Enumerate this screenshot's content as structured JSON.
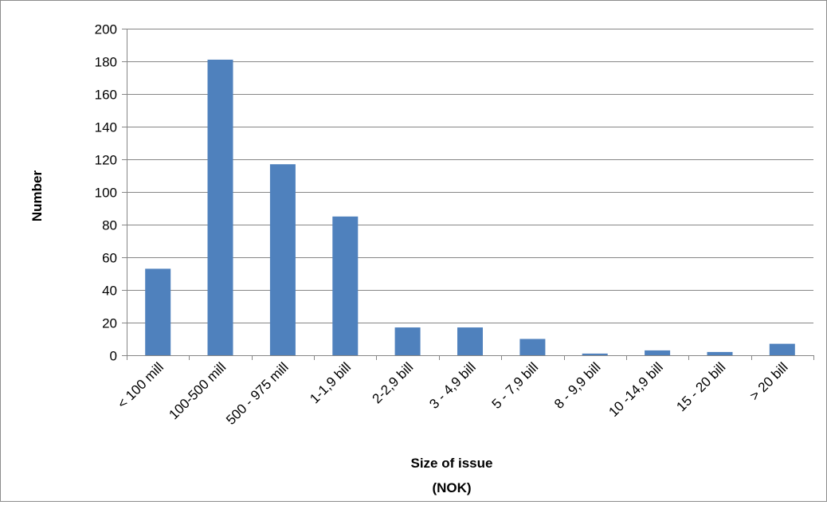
{
  "chart_data": {
    "type": "bar",
    "title": "",
    "xlabel": [
      "Size of issue",
      "(NOK)"
    ],
    "ylabel": "Number",
    "categories": [
      "< 100 mill",
      "100-500 mill",
      "500 - 975 mill",
      "1-1,9 bill",
      "2-2,9 bill",
      "3 - 4,9 bill",
      "5 - 7,9 bill",
      "8 - 9,9 bill",
      "10 -14,9 bill",
      "15 - 20 bill",
      "> 20 bill"
    ],
    "values": [
      53,
      181,
      117,
      85,
      17,
      17,
      10,
      1,
      3,
      2,
      7
    ],
    "ylim": [
      0,
      200
    ],
    "yticks": [
      "0",
      "20",
      "40",
      "60",
      "80",
      "100",
      "120",
      "140",
      "160",
      "180",
      "200"
    ],
    "grid": true,
    "legend": "none",
    "bar_color": "#4f81bd",
    "grid_color": "#868686",
    "axis_color": "#868686"
  }
}
